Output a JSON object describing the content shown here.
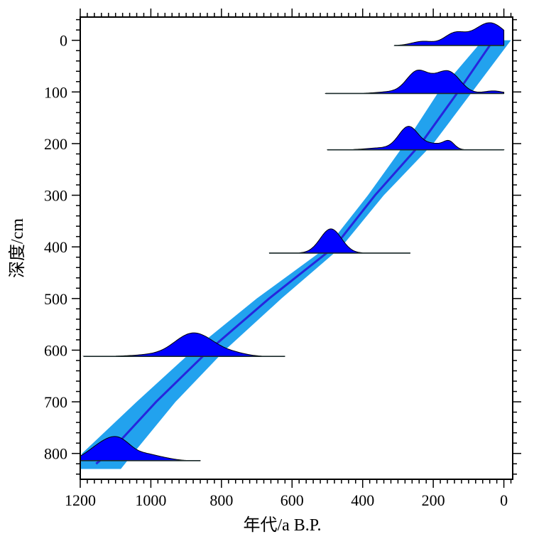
{
  "chart_data": {
    "type": "line",
    "title": "",
    "xlabel": "年代/a B.P.",
    "ylabel": "深度/cm",
    "xlim": [
      1200,
      -25
    ],
    "ylim": [
      -45,
      850
    ],
    "x_ticks": [
      1200,
      1000,
      800,
      600,
      400,
      200,
      0
    ],
    "x_tick_labels": [
      "1200",
      "1000",
      "800",
      "600",
      "400",
      "200",
      "0"
    ],
    "y_ticks": [
      0,
      100,
      200,
      300,
      400,
      500,
      600,
      700,
      800
    ],
    "y_tick_labels": [
      "0",
      "100",
      "200",
      "300",
      "400",
      "500",
      "600",
      "700",
      "800"
    ],
    "series": [
      {
        "name": "age-depth model (median)",
        "depth": [
          0,
          100,
          200,
          300,
          400,
          500,
          600,
          700,
          800,
          820
        ],
        "age": [
          30,
          130,
          235,
          365,
          480,
          665,
          835,
          985,
          1120,
          1155
        ]
      },
      {
        "name": "confidence envelope",
        "depth": [
          0,
          100,
          200,
          300,
          400,
          500,
          600,
          700,
          800,
          830
        ],
        "age_min": [
          -20,
          90,
          200,
          340,
          460,
          630,
          790,
          930,
          1050,
          1085
        ],
        "age_max": [
          60,
          185,
          280,
          385,
          500,
          700,
          880,
          1040,
          1195,
          1200
        ]
      }
    ],
    "dated_samples": [
      {
        "depth": 10,
        "age_range": [
          310,
          0
        ],
        "peak_age": 40
      },
      {
        "depth": 103,
        "age_range": [
          505,
          0
        ],
        "peak_age": 245
      },
      {
        "depth": 212,
        "age_range": [
          500,
          0
        ],
        "peak_age": 270
      },
      {
        "depth": 412,
        "age_range": [
          665,
          265
        ],
        "peak_age": 490
      },
      {
        "depth": 612,
        "age_range": [
          1190,
          620
        ],
        "peak_age": 895
      },
      {
        "depth": 814,
        "age_range": [
          1200,
          860
        ],
        "peak_age": 1090
      }
    ],
    "colors": {
      "envelope": "#22a2ee",
      "median": "#2626dd",
      "density": "#0000ff",
      "axis": "#000000"
    }
  }
}
